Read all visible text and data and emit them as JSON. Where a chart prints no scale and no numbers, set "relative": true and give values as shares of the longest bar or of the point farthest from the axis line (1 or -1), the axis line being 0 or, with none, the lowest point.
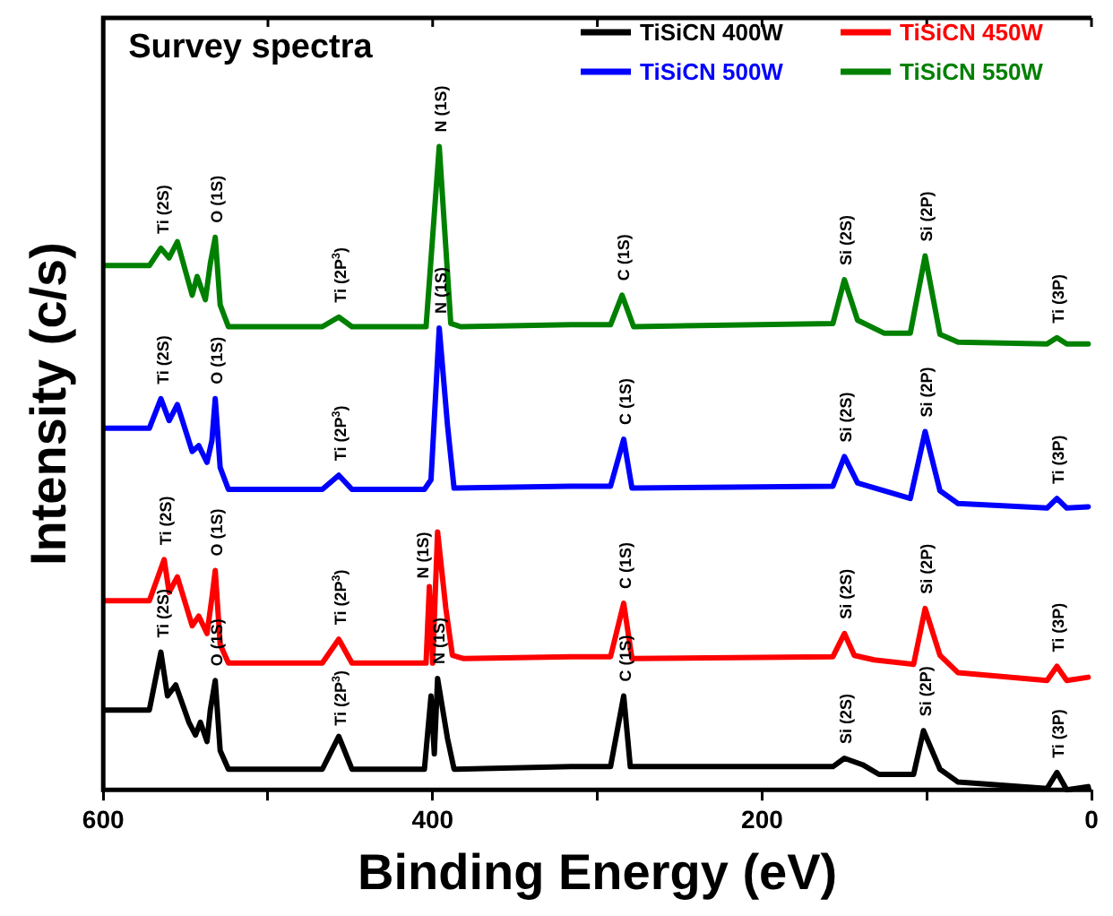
{
  "chart_data": {
    "type": "line",
    "title": "Survey spectra",
    "xlabel": "Binding Energy (eV)",
    "ylabel": "Intensity (c/s)",
    "relative": true,
    "marker": "none",
    "legend": "top right",
    "xlim": [
      600,
      0
    ],
    "xticks": [
      600,
      {
        "value": 500,
        "label": null
      },
      400,
      {
        "value": 300,
        "label": null
      },
      200,
      {
        "value": 100,
        "label": null
      },
      0
    ],
    "series": [
      {
        "name": "TiSiCN 400W",
        "color": "#000000",
        "x": [
          600,
          572,
          565,
          561,
          556,
          548,
          544,
          541,
          537,
          535,
          532,
          529,
          524,
          467,
          457,
          449,
          405,
          401,
          399,
          397,
          391,
          387,
          316,
          292,
          284,
          280,
          157,
          150,
          139,
          129,
          108,
          102,
          92,
          81,
          27,
          21,
          15,
          2
        ],
        "values": [
          0.124,
          0.124,
          0.214,
          0.146,
          0.163,
          0.105,
          0.085,
          0.105,
          0.075,
          0.124,
          0.17,
          0.061,
          0.032,
          0.032,
          0.083,
          0.032,
          0.032,
          0.146,
          0.056,
          0.173,
          0.08,
          0.032,
          0.036,
          0.036,
          0.146,
          0.036,
          0.036,
          0.049,
          0.039,
          0.024,
          0.024,
          0.092,
          0.032,
          0.012,
          0.002,
          0.027,
          0,
          0.005
        ]
      },
      {
        "name": "TiSiCN 450W",
        "color": "#ff0000",
        "x": [
          600,
          572,
          563,
          560,
          555,
          546,
          542,
          537,
          534,
          532,
          529,
          524,
          467,
          457,
          449,
          404,
          402,
          400,
          397,
          392,
          388,
          381,
          316,
          292,
          284,
          279,
          157,
          150,
          144,
          132,
          108,
          101,
          92,
          81,
          27,
          21,
          15,
          2
        ],
        "values": [
          0.294,
          0.294,
          0.358,
          0.307,
          0.331,
          0.255,
          0.27,
          0.243,
          0.299,
          0.341,
          0.226,
          0.197,
          0.197,
          0.234,
          0.197,
          0.197,
          0.316,
          0.197,
          0.401,
          0.282,
          0.209,
          0.204,
          0.207,
          0.207,
          0.29,
          0.204,
          0.207,
          0.243,
          0.209,
          0.202,
          0.195,
          0.282,
          0.209,
          0.182,
          0.17,
          0.192,
          0.17,
          0.175
        ]
      },
      {
        "name": "TiSiCN 500W",
        "color": "#0000ff",
        "x": [
          600,
          572,
          565,
          560,
          555,
          546,
          542,
          537,
          534,
          532,
          529,
          524,
          467,
          457,
          449,
          405,
          401,
          396,
          391,
          387,
          316,
          292,
          284,
          279,
          157,
          150,
          142,
          110,
          101,
          92,
          81,
          27,
          21,
          15,
          2
        ],
        "values": [
          0.562,
          0.562,
          0.608,
          0.574,
          0.599,
          0.526,
          0.535,
          0.509,
          0.543,
          0.608,
          0.501,
          0.467,
          0.467,
          0.489,
          0.467,
          0.467,
          0.482,
          0.718,
          0.567,
          0.469,
          0.472,
          0.472,
          0.545,
          0.469,
          0.472,
          0.518,
          0.477,
          0.453,
          0.557,
          0.465,
          0.445,
          0.438,
          0.453,
          0.438,
          0.44
        ]
      },
      {
        "name": "TiSiCN 550W",
        "color": "#008000",
        "x": [
          600,
          572,
          565,
          560,
          555,
          546,
          543,
          538,
          535,
          532,
          529,
          524,
          467,
          457,
          449,
          404,
          396,
          389,
          383,
          316,
          292,
          285,
          278,
          157,
          150,
          142,
          126,
          110,
          101,
          92,
          81,
          27,
          21,
          15,
          2
        ],
        "values": [
          0.815,
          0.815,
          0.842,
          0.827,
          0.852,
          0.769,
          0.798,
          0.762,
          0.818,
          0.859,
          0.754,
          0.72,
          0.72,
          0.735,
          0.72,
          0.72,
          1,
          0.725,
          0.72,
          0.723,
          0.723,
          0.769,
          0.72,
          0.725,
          0.793,
          0.73,
          0.71,
          0.71,
          0.83,
          0.708,
          0.696,
          0.693,
          0.703,
          0.693,
          0.693
        ]
      }
    ],
    "annotations": [
      {
        "text": "Ti (2S)",
        "x": 565,
        "y": 0.842
      },
      {
        "text": "O (1S)",
        "x": 532,
        "y": 0.859
      },
      {
        "text": "Ti (2P$^{3}$)",
        "x": 457,
        "y": 0.735
      },
      {
        "text": "N (1S)",
        "x": 396,
        "y": 1
      },
      {
        "text": "C (1S)",
        "x": 285,
        "y": 0.769
      },
      {
        "text": "Si (2S)",
        "x": 150,
        "y": 0.793
      },
      {
        "text": "Si (2P)",
        "x": 101,
        "y": 0.83
      },
      {
        "text": "Ti (3P)",
        "x": 21,
        "y": 0.703
      },
      {
        "text": "Ti (2S)",
        "x": 565,
        "y": 0.608
      },
      {
        "text": "O (1S)",
        "x": 532,
        "y": 0.608
      },
      {
        "text": "Ti (2P$^{3}$)",
        "x": 457,
        "y": 0.489
      },
      {
        "text": "N (1S)",
        "x": 396,
        "y": 0.718
      },
      {
        "text": "C (1S)",
        "x": 284,
        "y": 0.545
      },
      {
        "text": "Si (2S)",
        "x": 150,
        "y": 0.518
      },
      {
        "text": "Si (2P)",
        "x": 101,
        "y": 0.557
      },
      {
        "text": "Ti (3P)",
        "x": 21,
        "y": 0.453
      },
      {
        "text": "Ti (2S)",
        "x": 563,
        "y": 0.358
      },
      {
        "text": "O (1S)",
        "x": 532,
        "y": 0.341
      },
      {
        "text": "Ti (2P$^{3}$)",
        "x": 457,
        "y": 0.234
      },
      {
        "text": "N (1S)",
        "x": 397,
        "y": 0.401
      },
      {
        "text": "C (1S)",
        "x": 284,
        "y": 0.29
      },
      {
        "text": "Si (2S)",
        "x": 150,
        "y": 0.243
      },
      {
        "text": "Si (2P)",
        "x": 101,
        "y": 0.282
      },
      {
        "text": "Ti (3P)",
        "x": 21,
        "y": 0.192
      },
      {
        "text": "Ti (2S)",
        "x": 565,
        "y": 0.214
      },
      {
        "text": "O (1S)",
        "x": 532,
        "y": 0.17
      },
      {
        "text": "Ti (2P$^{3}$)",
        "x": 457,
        "y": 0.083
      },
      {
        "text": "N (1S)",
        "x": 397,
        "y": 0.173
      },
      {
        "text": "C (1S)",
        "x": 284,
        "y": 0.146
      },
      {
        "text": "Si (2S)",
        "x": 150,
        "y": 0.049
      },
      {
        "text": "Si (2P)",
        "x": 102,
        "y": 0.092
      },
      {
        "text": "Ti (3P)",
        "x": 21,
        "y": 0.027
      }
    ]
  }
}
